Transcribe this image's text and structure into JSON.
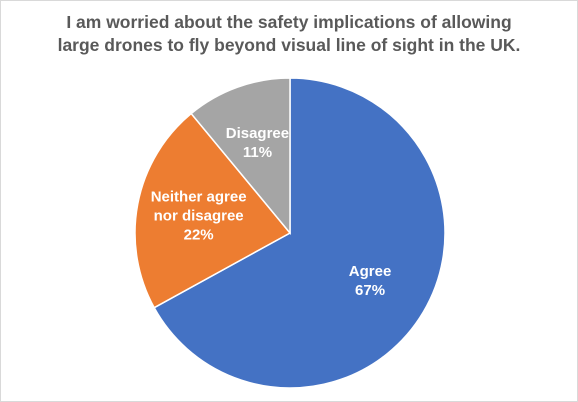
{
  "chart_data": {
    "type": "pie",
    "title_lines": [
      "I am worried about the safety implications of allowing",
      "large drones to fly beyond visual line of sight in the UK."
    ],
    "start_angle_deg": 0,
    "direction": "clockwise",
    "slices": [
      {
        "label_lines": [
          "Agree"
        ],
        "value": 67,
        "percent_label": "67%",
        "color": "#4472C4"
      },
      {
        "label_lines": [
          "Neither agree",
          "nor disagree"
        ],
        "value": 22,
        "percent_label": "22%",
        "color": "#ED7D31"
      },
      {
        "label_lines": [
          "Disagree"
        ],
        "value": 11,
        "percent_label": "11%",
        "color": "#A5A5A5"
      }
    ],
    "legend": "none",
    "data_labels": "inside"
  }
}
